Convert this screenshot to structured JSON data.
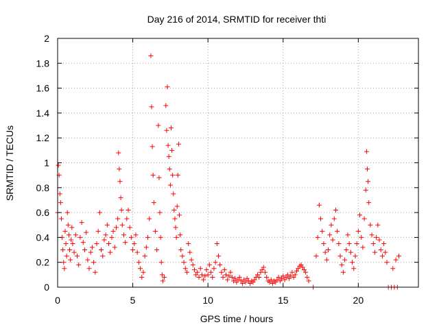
{
  "chart_data": {
    "type": "scatter",
    "title": "Day 216 of 2014, SRMTID for receiver thti",
    "xlabel": "GPS time / hours",
    "ylabel": "SRMTID / TECUs",
    "xlim": [
      0,
      24
    ],
    "ylim": [
      0,
      2
    ],
    "xticks": [
      0,
      5,
      10,
      15,
      20
    ],
    "xtick_labels": [
      "0",
      "5",
      "10",
      "15",
      "20"
    ],
    "yticks": [
      0,
      0.2,
      0.4,
      0.6,
      0.8,
      1,
      1.2,
      1.4,
      1.6,
      1.8,
      2
    ],
    "ytick_labels": [
      "0",
      "0.2",
      "0.4",
      "0.6",
      "0.8",
      "1",
      "1.2",
      "1.4",
      "1.6",
      "1.8",
      "2"
    ],
    "grid": true,
    "marker": "+",
    "color": "#ff0000",
    "series": [
      {
        "name": "SRMTID",
        "points": [
          [
            0.0,
            0.6
          ],
          [
            0.05,
            0.98
          ],
          [
            0.1,
            0.9
          ],
          [
            0.15,
            0.75
          ],
          [
            0.2,
            0.68
          ],
          [
            0.25,
            0.55
          ],
          [
            0.3,
            0.4
          ],
          [
            0.35,
            0.3
          ],
          [
            0.4,
            0.2
          ],
          [
            0.45,
            0.15
          ],
          [
            0.5,
            0.45
          ],
          [
            0.55,
            0.35
          ],
          [
            0.6,
            0.25
          ],
          [
            0.65,
            0.6
          ],
          [
            0.7,
            0.5
          ],
          [
            0.75,
            0.42
          ],
          [
            0.8,
            0.3
          ],
          [
            0.85,
            0.22
          ],
          [
            0.9,
            0.38
          ],
          [
            0.95,
            0.48
          ],
          [
            1.0,
            0.35
          ],
          [
            1.1,
            0.28
          ],
          [
            1.2,
            0.42
          ],
          [
            1.3,
            0.25
          ],
          [
            1.4,
            0.18
          ],
          [
            1.5,
            0.4
          ],
          [
            1.6,
            0.52
          ],
          [
            1.7,
            0.36
          ],
          [
            1.8,
            0.3
          ],
          [
            1.9,
            0.44
          ],
          [
            2.0,
            0.22
          ],
          [
            2.1,
            0.15
          ],
          [
            2.2,
            0.28
          ],
          [
            2.3,
            0.32
          ],
          [
            2.4,
            0.2
          ],
          [
            2.5,
            0.12
          ],
          [
            2.6,
            0.35
          ],
          [
            2.7,
            0.45
          ],
          [
            2.8,
            0.6
          ],
          [
            2.9,
            0.3
          ],
          [
            3.0,
            0.25
          ],
          [
            3.1,
            0.38
          ],
          [
            3.2,
            0.42
          ],
          [
            3.3,
            0.5
          ],
          [
            3.4,
            0.35
          ],
          [
            3.5,
            0.28
          ],
          [
            3.6,
            0.4
          ],
          [
            3.7,
            0.45
          ],
          [
            3.8,
            0.32
          ],
          [
            3.9,
            0.48
          ],
          [
            4.0,
            0.55
          ],
          [
            4.05,
            1.08
          ],
          [
            4.1,
            0.95
          ],
          [
            4.15,
            0.85
          ],
          [
            4.2,
            0.72
          ],
          [
            4.25,
            0.62
          ],
          [
            4.3,
            0.5
          ],
          [
            4.4,
            0.42
          ],
          [
            4.5,
            0.36
          ],
          [
            4.6,
            0.55
          ],
          [
            4.7,
            0.62
          ],
          [
            4.8,
            0.48
          ],
          [
            4.9,
            0.4
          ],
          [
            5.0,
            0.3
          ],
          [
            5.1,
            0.35
          ],
          [
            5.2,
            0.42
          ],
          [
            5.3,
            0.28
          ],
          [
            5.4,
            0.2
          ],
          [
            5.5,
            0.15
          ],
          [
            5.6,
            0.08
          ],
          [
            5.7,
            0.12
          ],
          [
            5.8,
            0.25
          ],
          [
            5.9,
            0.32
          ],
          [
            6.0,
            0.4
          ],
          [
            6.1,
            0.55
          ],
          [
            6.2,
            1.86
          ],
          [
            6.25,
            1.45
          ],
          [
            6.3,
            1.13
          ],
          [
            6.35,
            0.9
          ],
          [
            6.4,
            0.68
          ],
          [
            6.5,
            0.45
          ],
          [
            6.6,
            0.3
          ],
          [
            6.7,
            1.3
          ],
          [
            6.75,
            0.88
          ],
          [
            6.8,
            0.6
          ],
          [
            6.85,
            0.4
          ],
          [
            6.9,
            0.2
          ],
          [
            6.95,
            0.1
          ],
          [
            7.0,
            0.05
          ],
          [
            7.1,
            0.08
          ],
          [
            7.2,
            1.46
          ],
          [
            7.25,
            1.26
          ],
          [
            7.3,
            1.61
          ],
          [
            7.35,
            1.14
          ],
          [
            7.4,
            1.05
          ],
          [
            7.45,
            0.95
          ],
          [
            7.5,
            0.82
          ],
          [
            7.55,
            1.28
          ],
          [
            7.6,
            1.1
          ],
          [
            7.65,
            0.9
          ],
          [
            7.7,
            0.75
          ],
          [
            7.75,
            0.62
          ],
          [
            7.8,
            0.55
          ],
          [
            7.85,
            0.48
          ],
          [
            7.9,
            0.4
          ],
          [
            7.95,
            0.65
          ],
          [
            8.0,
            0.9
          ],
          [
            8.05,
            1.15
          ],
          [
            8.1,
            0.58
          ],
          [
            8.15,
            0.42
          ],
          [
            8.2,
            0.3
          ],
          [
            8.3,
            0.25
          ],
          [
            8.4,
            0.2
          ],
          [
            8.5,
            0.15
          ],
          [
            8.6,
            0.12
          ],
          [
            8.7,
            0.35
          ],
          [
            8.8,
            0.28
          ],
          [
            8.9,
            0.22
          ],
          [
            9.0,
            0.18
          ],
          [
            9.1,
            0.14
          ],
          [
            9.2,
            0.1
          ],
          [
            9.3,
            0.12
          ],
          [
            9.4,
            0.08
          ],
          [
            9.5,
            0.15
          ],
          [
            9.6,
            0.1
          ],
          [
            9.7,
            0.06
          ],
          [
            9.8,
            0.09
          ],
          [
            9.9,
            0.14
          ],
          [
            10.0,
            0.1
          ],
          [
            10.1,
            0.18
          ],
          [
            10.2,
            0.12
          ],
          [
            10.3,
            0.08
          ],
          [
            10.4,
            0.15
          ],
          [
            10.5,
            0.2
          ],
          [
            10.6,
            0.35
          ],
          [
            10.7,
            0.25
          ],
          [
            10.8,
            0.18
          ],
          [
            10.9,
            0.12
          ],
          [
            11.0,
            0.08
          ],
          [
            11.1,
            0.14
          ],
          [
            11.2,
            0.1
          ],
          [
            11.3,
            0.06
          ],
          [
            11.4,
            0.09
          ],
          [
            11.5,
            0.12
          ],
          [
            11.6,
            0.08
          ],
          [
            11.7,
            0.05
          ],
          [
            11.8,
            0.07
          ],
          [
            11.9,
            0.04
          ],
          [
            12.0,
            0.06
          ],
          [
            12.1,
            0.08
          ],
          [
            12.2,
            0.05
          ],
          [
            12.3,
            0.03
          ],
          [
            12.4,
            0.06
          ],
          [
            12.5,
            0.04
          ],
          [
            12.6,
            0.07
          ],
          [
            12.7,
            0.05
          ],
          [
            12.8,
            0.03
          ],
          [
            12.9,
            0.05
          ],
          [
            13.0,
            0.04
          ],
          [
            13.1,
            0.06
          ],
          [
            13.2,
            0.08
          ],
          [
            13.3,
            0.1
          ],
          [
            13.4,
            0.08
          ],
          [
            13.5,
            0.12
          ],
          [
            13.6,
            0.14
          ],
          [
            13.7,
            0.16
          ],
          [
            13.8,
            0.12
          ],
          [
            13.9,
            0.08
          ],
          [
            14.0,
            0.05
          ],
          [
            14.1,
            0.04
          ],
          [
            14.2,
            0.06
          ],
          [
            14.3,
            0.03
          ],
          [
            14.4,
            0.05
          ],
          [
            14.5,
            0.04
          ],
          [
            14.6,
            0.06
          ],
          [
            14.7,
            0.08
          ],
          [
            14.8,
            0.05
          ],
          [
            14.9,
            0.07
          ],
          [
            15.0,
            0.09
          ],
          [
            15.1,
            0.06
          ],
          [
            15.2,
            0.08
          ],
          [
            15.3,
            0.1
          ],
          [
            15.4,
            0.07
          ],
          [
            15.5,
            0.09
          ],
          [
            15.6,
            0.12
          ],
          [
            15.7,
            0.08
          ],
          [
            15.8,
            0.1
          ],
          [
            15.9,
            0.13
          ],
          [
            16.0,
            0.15
          ],
          [
            16.1,
            0.17
          ],
          [
            16.2,
            0.18
          ],
          [
            16.3,
            0.16
          ],
          [
            16.4,
            0.14
          ],
          [
            16.5,
            0.12
          ],
          [
            16.6,
            0.08
          ],
          [
            16.7,
            0.05
          ],
          [
            17.0,
            0.0
          ],
          [
            17.2,
            0.25
          ],
          [
            17.3,
            0.4
          ],
          [
            17.4,
            0.66
          ],
          [
            17.5,
            0.55
          ],
          [
            17.6,
            0.45
          ],
          [
            17.7,
            0.35
          ],
          [
            17.8,
            0.28
          ],
          [
            17.9,
            0.22
          ],
          [
            18.0,
            0.3
          ],
          [
            18.1,
            0.42
          ],
          [
            18.2,
            0.5
          ],
          [
            18.3,
            0.38
          ],
          [
            18.4,
            0.55
          ],
          [
            18.5,
            0.62
          ],
          [
            18.6,
            0.45
          ],
          [
            18.7,
            0.35
          ],
          [
            18.8,
            0.25
          ],
          [
            18.9,
            0.18
          ],
          [
            19.0,
            0.12
          ],
          [
            19.1,
            0.22
          ],
          [
            19.2,
            0.3
          ],
          [
            19.3,
            0.42
          ],
          [
            19.4,
            0.35
          ],
          [
            19.5,
            0.28
          ],
          [
            19.6,
            0.2
          ],
          [
            19.7,
            0.15
          ],
          [
            19.8,
            0.25
          ],
          [
            19.9,
            0.35
          ],
          [
            20.0,
            0.45
          ],
          [
            20.1,
            0.58
          ],
          [
            20.2,
            0.4
          ],
          [
            20.3,
            0.32
          ],
          [
            20.4,
            0.55
          ],
          [
            20.5,
            0.78
          ],
          [
            20.55,
            1.09
          ],
          [
            20.6,
            0.95
          ],
          [
            20.65,
            0.85
          ],
          [
            20.7,
            0.68
          ],
          [
            20.8,
            0.5
          ],
          [
            20.9,
            0.42
          ],
          [
            21.0,
            0.35
          ],
          [
            21.1,
            0.28
          ],
          [
            21.2,
            0.4
          ],
          [
            21.3,
            0.5
          ],
          [
            21.4,
            0.38
          ],
          [
            21.5,
            0.3
          ],
          [
            21.6,
            0.25
          ],
          [
            21.7,
            0.35
          ],
          [
            21.8,
            0.28
          ],
          [
            21.9,
            0.2
          ],
          [
            22.0,
            0.0
          ],
          [
            22.2,
            0.0
          ],
          [
            22.3,
            0.15
          ],
          [
            22.4,
            0.0
          ],
          [
            22.5,
            0.22
          ],
          [
            22.6,
            0.0
          ],
          [
            22.7,
            0.25
          ]
        ]
      }
    ]
  }
}
